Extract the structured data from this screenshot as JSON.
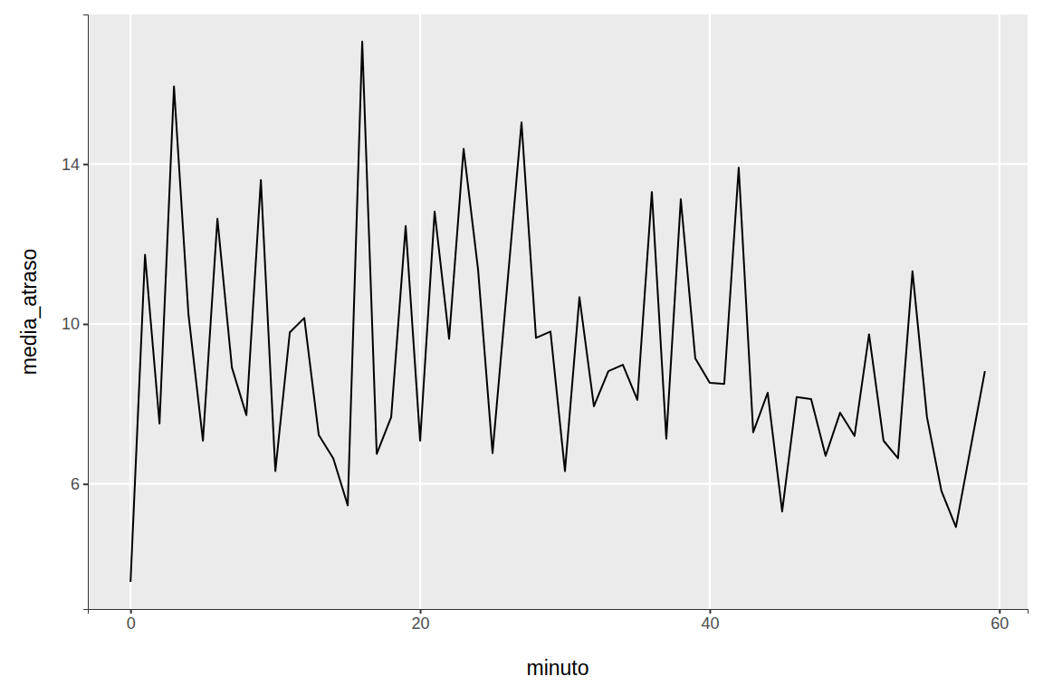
{
  "chart_data": {
    "type": "line",
    "x_label": "minuto",
    "y_label": "media_atraso",
    "x": [
      0,
      1,
      2,
      3,
      4,
      5,
      6,
      7,
      8,
      9,
      10,
      11,
      12,
      13,
      14,
      15,
      16,
      17,
      18,
      19,
      20,
      21,
      22,
      23,
      24,
      25,
      26,
      27,
      28,
      29,
      30,
      31,
      32,
      33,
      34,
      35,
      36,
      37,
      38,
      39,
      40,
      41,
      42,
      43,
      44,
      45,
      46,
      47,
      48,
      49,
      50,
      51,
      52,
      53,
      54,
      55,
      56,
      57,
      58,
      59
    ],
    "values": [
      3.55,
      11.73,
      7.51,
      15.94,
      10.24,
      7.08,
      12.63,
      8.91,
      7.72,
      13.6,
      6.32,
      9.79,
      10.15,
      7.22,
      6.64,
      5.46,
      17.06,
      6.75,
      7.67,
      12.45,
      7.08,
      12.81,
      9.63,
      14.38,
      11.36,
      6.77,
      10.9,
      15.04,
      9.65,
      9.81,
      6.32,
      10.67,
      7.94,
      8.82,
      8.98,
      8.1,
      13.3,
      7.13,
      13.12,
      9.14,
      8.53,
      8.5,
      13.91,
      7.29,
      8.28,
      5.31,
      8.17,
      8.12,
      6.7,
      7.78,
      7.2,
      9.74,
      7.08,
      6.64,
      11.32,
      7.67,
      5.82,
      4.92,
      6.87,
      8.82
    ],
    "color": "#000000",
    "xlim": [
      -2.95,
      61.95
    ],
    "xticks": [
      0,
      20,
      40,
      60
    ],
    "ylim": [
      2.87,
      17.74
    ],
    "yticks": [
      6,
      10,
      14
    ],
    "grid": true
  }
}
